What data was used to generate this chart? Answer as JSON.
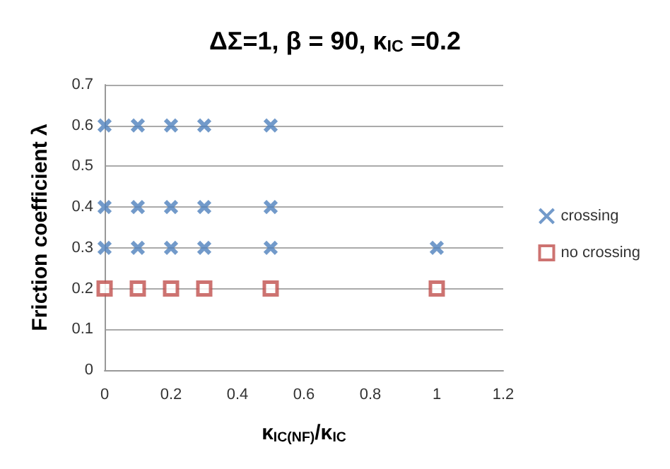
{
  "chart_data": {
    "type": "scatter",
    "title": "ΔΣ=1, β = 90, κ$_{IC}$ =0.2",
    "xlabel": "κ$_{IC(NF)}$/κ$_{IC}$",
    "ylabel": "Friction coefficient λ",
    "series": [
      {
        "name": "crossing",
        "color": "#4f81bd",
        "marker": "cross",
        "x": [
          0,
          0.1,
          0.2,
          0.3,
          0.5,
          0,
          0.1,
          0.2,
          0.3,
          0.5,
          0,
          0.1,
          0.2,
          0.3,
          0.5,
          1
        ],
        "values": [
          0.6,
          0.6,
          0.6,
          0.6,
          0.6,
          0.4,
          0.4,
          0.4,
          0.4,
          0.4,
          0.3,
          0.3,
          0.3,
          0.3,
          0.3,
          0.3
        ]
      },
      {
        "name": "no crossing",
        "color": "#c0504d",
        "marker": "square",
        "x": [
          0,
          0.1,
          0.2,
          0.3,
          0.5,
          1
        ],
        "values": [
          0.2,
          0.2,
          0.2,
          0.2,
          0.2,
          0.2
        ]
      }
    ],
    "xlim": [
      0,
      1.2
    ],
    "xticks": [
      0,
      0.2,
      0.4,
      0.6,
      0.8,
      1,
      1.2
    ],
    "ylim": [
      0,
      0.7
    ],
    "yticks": [
      0,
      0.1,
      0.2,
      0.3,
      0.4,
      0.5,
      0.6,
      0.7
    ],
    "grid": "y",
    "legend": "right"
  }
}
